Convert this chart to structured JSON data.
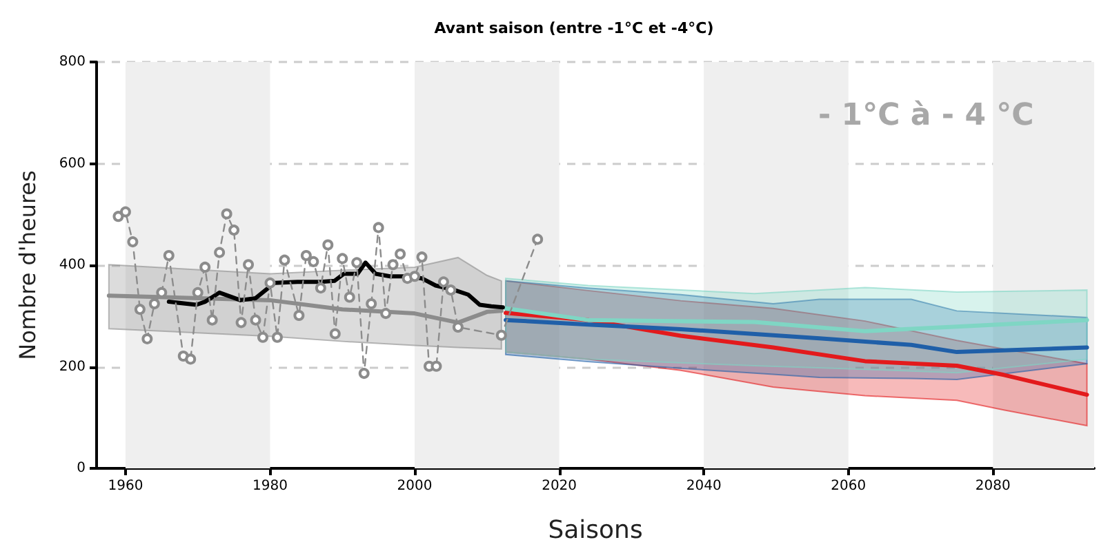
{
  "chart_data": {
    "type": "line",
    "title": "Avant saison (entre -1°C et -4°C)",
    "xlabel": "Saisons",
    "ylabel": "Nombre d'heures",
    "annotations": [
      "- 1°C à - 4 °C"
    ],
    "xlim": [
      1956,
      2094
    ],
    "xticks": [
      1960,
      1980,
      2000,
      2020,
      2040,
      2060,
      2080
    ],
    "ylim": [
      0,
      800
    ],
    "yticks": [
      0,
      200,
      400,
      600,
      800
    ],
    "grid": "y",
    "marker": "none",
    "line_style": "solid",
    "bands": [
      {
        "axis": "x",
        "from": 1960,
        "to": 1980,
        "color": "#efefef"
      },
      {
        "axis": "x",
        "from": 2000,
        "to": 2020,
        "color": "#efefef"
      },
      {
        "axis": "x",
        "from": 2040,
        "to": 2060,
        "color": "#efefef"
      },
      {
        "axis": "x",
        "from": 2080,
        "to": 2094,
        "color": "#efefef"
      }
    ],
    "series": [
      {
        "color": "#8c8c8c",
        "x": [
          1957.7,
          1980,
          1990,
          2000,
          2006,
          2010,
          2012
        ],
        "values": [
          340,
          331,
          313,
          305,
          287,
          308,
          310
        ],
        "lower": [
          275,
          260,
          250,
          242,
          238,
          236,
          235
        ],
        "upper": [
          401,
          383,
          390,
          396,
          415,
          380,
          369
        ]
      },
      {
        "color": "#e31a1c",
        "x": [
          2012.6,
          2024,
          2036.8,
          2049.6,
          2062.3,
          2075,
          2081.5,
          2093
        ],
        "values": [
          306,
          292,
          261,
          238,
          211,
          202,
          184,
          145
        ],
        "lower": [
          229,
          215,
          193,
          160,
          143,
          134,
          115,
          84
        ],
        "upper": [
          369,
          350,
          330,
          315,
          290,
          252,
          235,
          206
        ]
      },
      {
        "color": "#1f5fa8",
        "x": [
          2012.6,
          2024,
          2036.8,
          2049.6,
          2056,
          2068.7,
          2075,
          2093
        ],
        "values": [
          292,
          283,
          274,
          262,
          256,
          243,
          229,
          238
        ],
        "lower": [
          224,
          210,
          197,
          185,
          179,
          177,
          175,
          206
        ],
        "upper": [
          369,
          355,
          342,
          324,
          333,
          333,
          310,
          297
        ]
      },
      {
        "color": "#7fd6c4",
        "x": [
          2012.6,
          2024,
          2047,
          2062.3,
          2075,
          2093
        ],
        "values": [
          315,
          292,
          288,
          270,
          279,
          292
        ],
        "lower": [
          229,
          215,
          202,
          195,
          188,
          215
        ],
        "upper": [
          374,
          360,
          344,
          356,
          347,
          351
        ]
      },
      {
        "color": "#8c8c8c",
        "marker": "circle",
        "line_style": "dashed",
        "x": [
          1959,
          1960,
          1961,
          1962,
          1963,
          1964,
          1965,
          1966,
          1968,
          1969,
          1970,
          1971,
          1972,
          1973,
          1974,
          1975,
          1976,
          1977,
          1978,
          1979,
          1980,
          1981,
          1982,
          1984,
          1985,
          1986,
          1987,
          1988,
          1989,
          1990,
          1991,
          1992,
          1993,
          1994,
          1995,
          1996,
          1997,
          1998,
          1999,
          2000,
          2001,
          2002,
          2003,
          2004,
          2005,
          2006,
          2012,
          2017
        ],
        "values": [
          496,
          505,
          446,
          313,
          255,
          324,
          346,
          419,
          221,
          215,
          346,
          396,
          292,
          425,
          501,
          469,
          287,
          401,
          292,
          258,
          365,
          258,
          410,
          301,
          419,
          407,
          355,
          440,
          265,
          413,
          337,
          405,
          187,
          324,
          474,
          305,
          401,
          422,
          374,
          378,
          416,
          201,
          201,
          367,
          351,
          278,
          262,
          451
        ]
      },
      {
        "color": "#000000",
        "x": [
          1966,
          1969.8,
          1971,
          1972,
          1973,
          1975.9,
          1978,
          1980.6,
          1983.8,
          1987,
          1988.9,
          1990.2,
          1992.1,
          1993.2,
          1994.6,
          1996.6,
          1999.1,
          2001,
          2002.9,
          2005.5,
          2007.4,
          2009,
          2010.6,
          2012.2
        ],
        "values": [
          328,
          322,
          328,
          337,
          346,
          331,
          335,
          365,
          367,
          367,
          369,
          383,
          383,
          405,
          383,
          378,
          378,
          374,
          360,
          351,
          342,
          322,
          319,
          317
        ]
      }
    ]
  }
}
